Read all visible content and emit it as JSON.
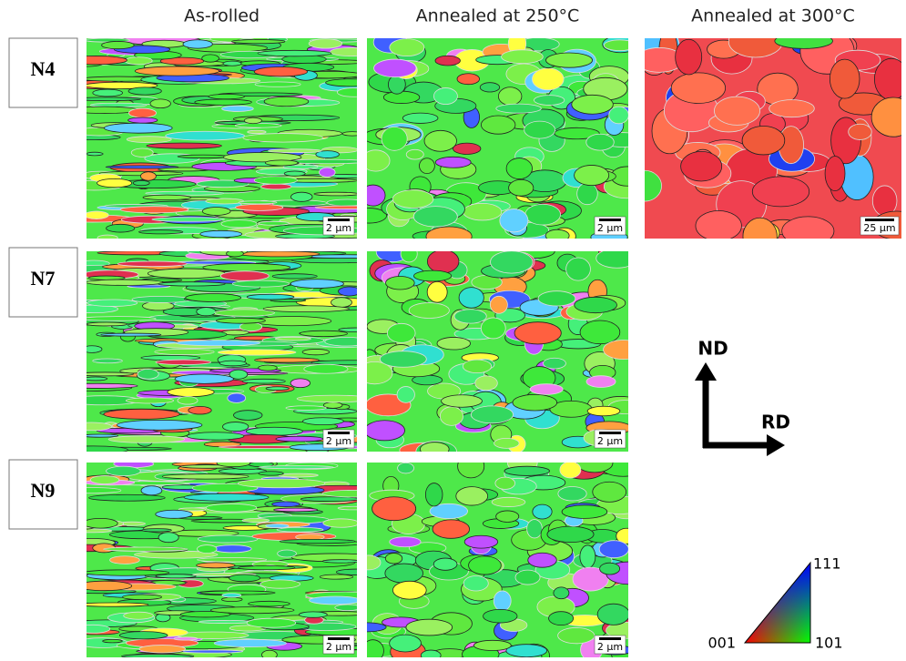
{
  "column_headers": [
    "As-rolled",
    "Annealed at 250°C",
    "Annealed at 300°C"
  ],
  "rows": [
    {
      "label": "N4",
      "scale_bars": [
        "2 µm",
        "2 µm",
        "25 µm"
      ]
    },
    {
      "label": "N7",
      "scale_bars": [
        "2 µm",
        "2 µm"
      ]
    },
    {
      "label": "N9",
      "scale_bars": [
        "2 µm",
        "2 µm"
      ]
    }
  ],
  "axes": {
    "vertical": "ND",
    "horizontal": "RD"
  },
  "ipf_legend": {
    "corners": [
      "001",
      "101",
      "111"
    ]
  }
}
